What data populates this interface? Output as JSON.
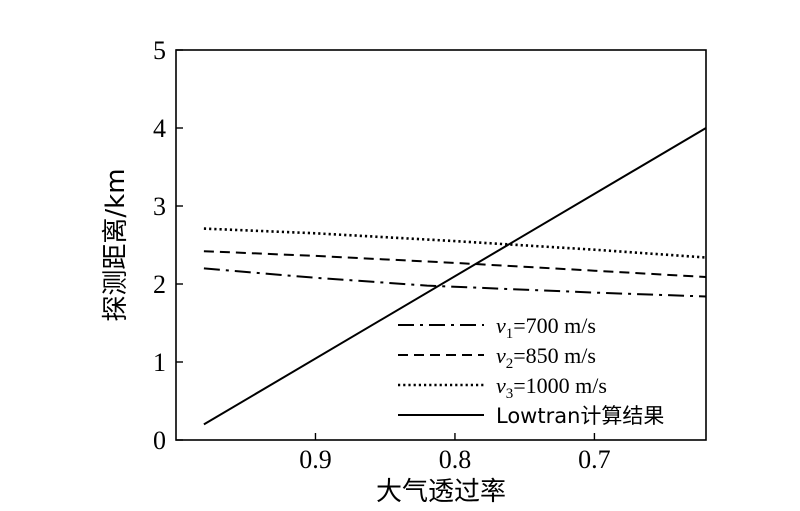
{
  "chart_data": {
    "type": "line",
    "title": "",
    "xlabel": "大气透过率",
    "ylabel": "探测距离/km",
    "xlim": [
      1.0,
      0.62
    ],
    "ylim": [
      0,
      5
    ],
    "x_reversed": true,
    "xticks": [
      0.9,
      0.8,
      0.7
    ],
    "xtick_labels": [
      "0.9",
      "0.8",
      "0.7"
    ],
    "yticks": [
      0,
      1,
      2,
      3,
      4,
      5
    ],
    "ytick_labels": [
      "0",
      "1",
      "2",
      "3",
      "4",
      "5"
    ],
    "grid": false,
    "legend_position": "bottom-right",
    "series": [
      {
        "name_italic": "v",
        "name_sub": "1",
        "name_rest": "=700 m/s",
        "style": "dash-dot",
        "x": [
          0.98,
          0.9,
          0.82,
          0.7,
          0.62
        ],
        "y": [
          2.2,
          2.08,
          1.98,
          1.89,
          1.84
        ]
      },
      {
        "name_italic": "v",
        "name_sub": "2",
        "name_rest": "=850 m/s",
        "style": "dashed",
        "x": [
          0.98,
          0.9,
          0.8,
          0.7,
          0.62
        ],
        "y": [
          2.42,
          2.36,
          2.27,
          2.17,
          2.09
        ]
      },
      {
        "name_italic": "v",
        "name_sub": "3",
        "name_rest": "=1000 m/s",
        "style": "dotted",
        "x": [
          0.98,
          0.9,
          0.8,
          0.7,
          0.62
        ],
        "y": [
          2.71,
          2.65,
          2.55,
          2.44,
          2.34
        ]
      },
      {
        "name_italic": "",
        "name_sub": "",
        "name_rest": "Lowtran计算结果",
        "style": "solid",
        "x": [
          0.98,
          0.62
        ],
        "y": [
          0.2,
          4.0
        ]
      }
    ]
  }
}
